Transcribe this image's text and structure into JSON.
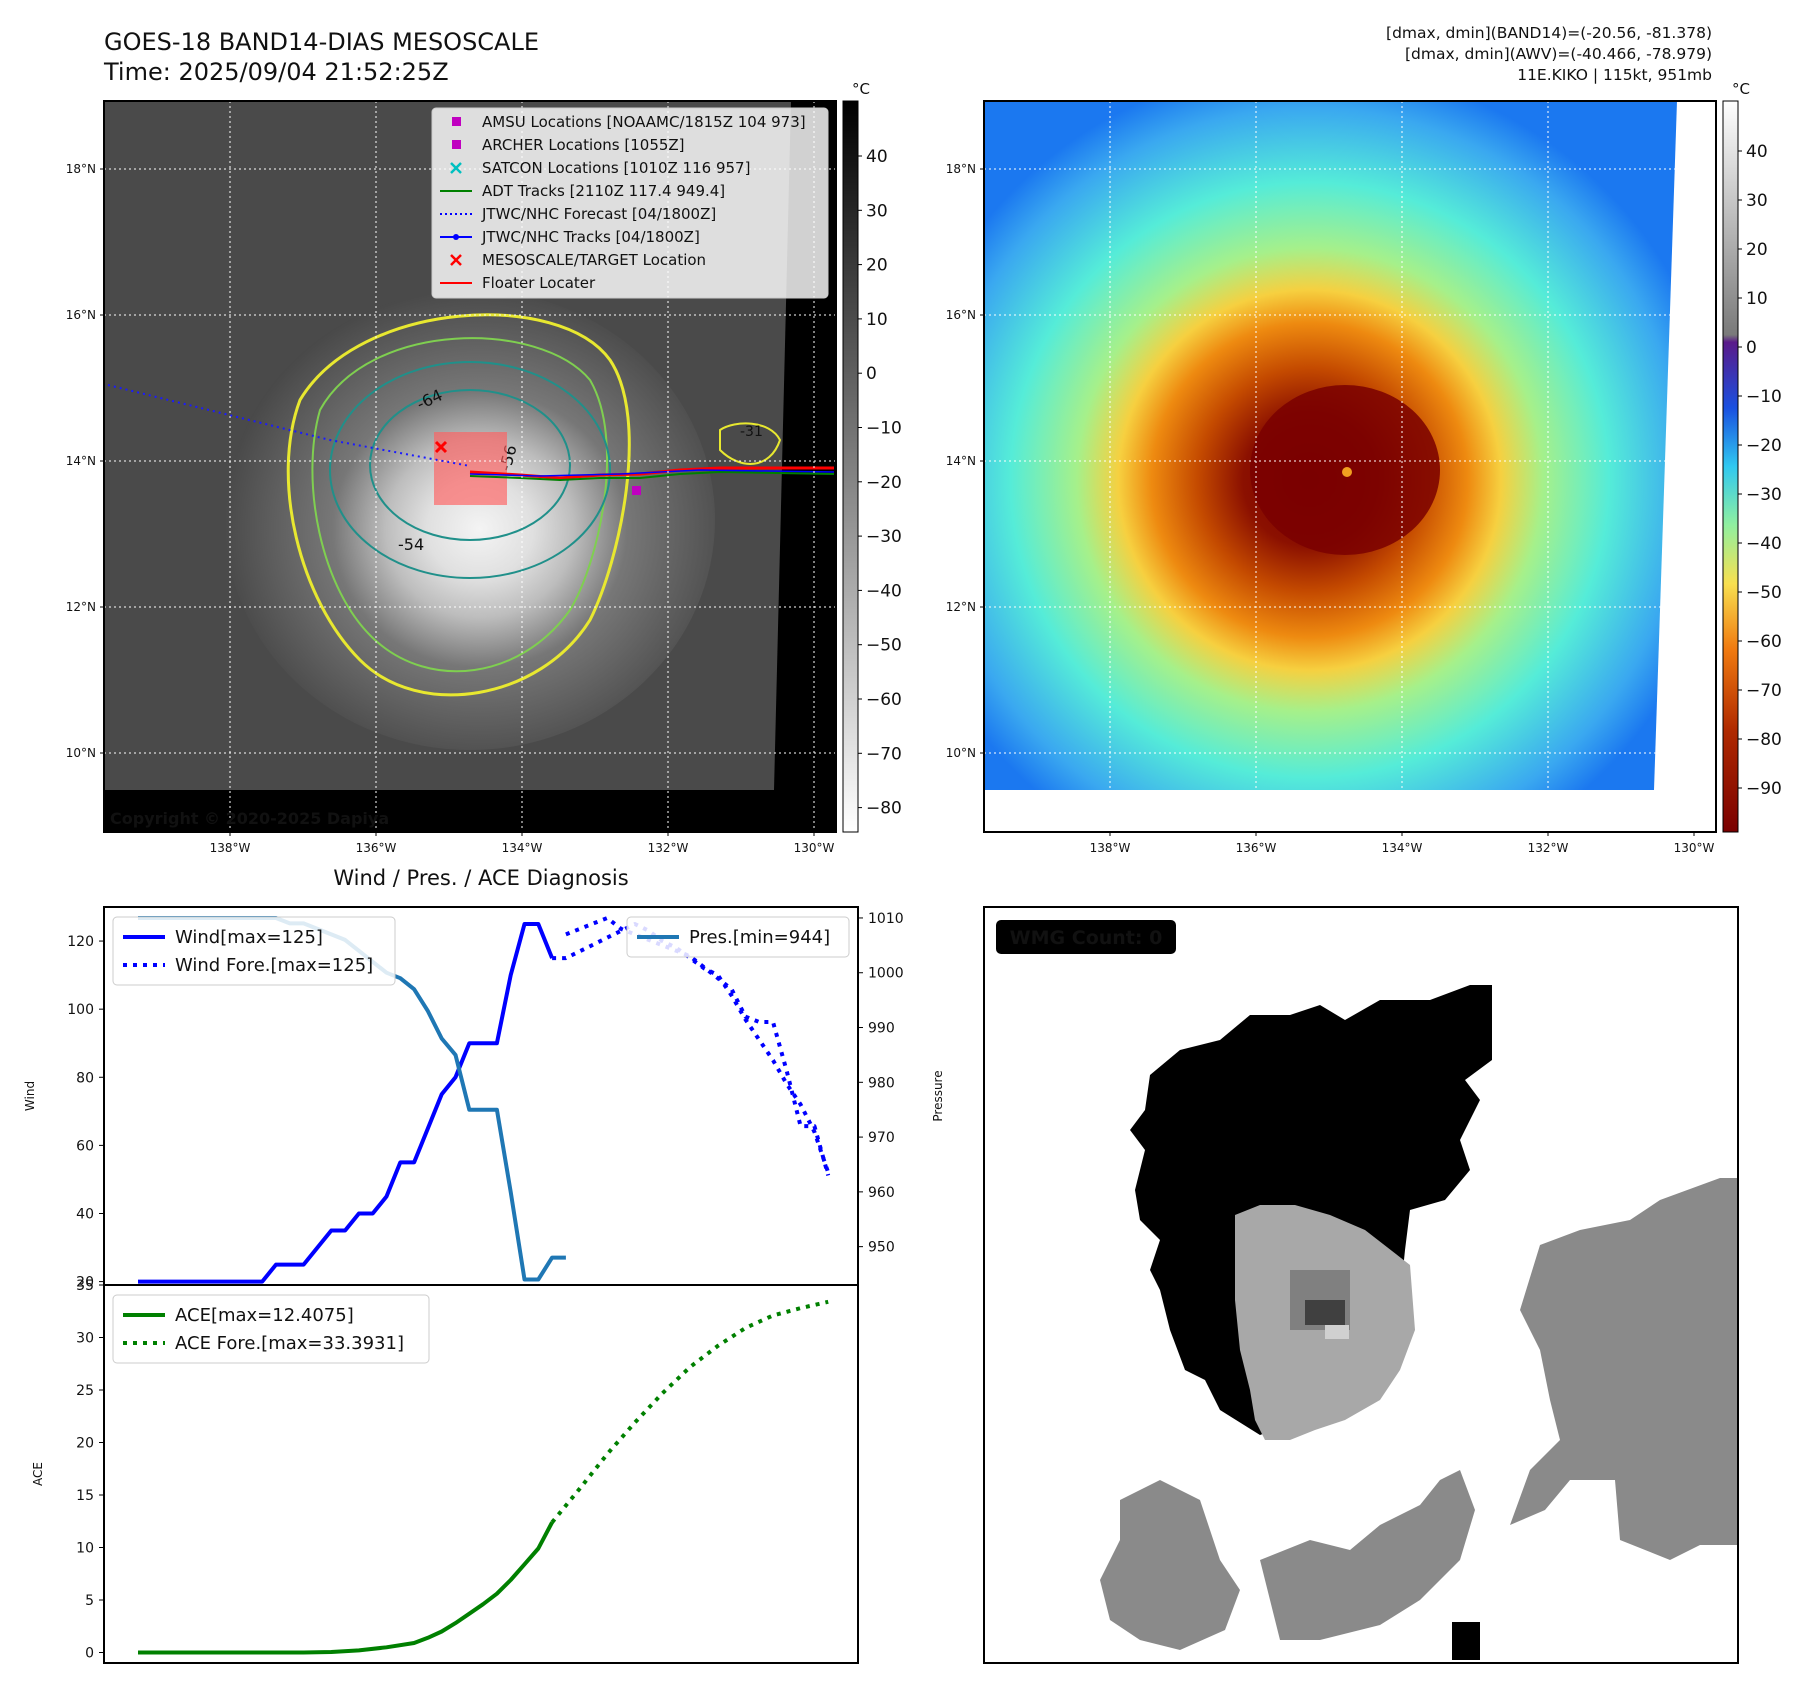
{
  "header": {
    "title_line1": "GOES-18 BAND14-DIAS MESOSCALE",
    "title_line2": "Time: 2025/09/04 21:52:25Z",
    "info_line1": "[dmax, dmin](BAND14)=(-20.56, -81.378)",
    "info_line2": "[dmax, dmin](AWV)=(-40.466, -78.979)",
    "info_line3": "11E.KIKO | 115kt, 951mb"
  },
  "map": {
    "lat_labels": [
      "18°N",
      "16°N",
      "14°N",
      "12°N",
      "10°N"
    ],
    "lat_values": [
      18,
      16,
      14,
      12,
      10
    ],
    "lon_labels": [
      "138°W",
      "136°W",
      "134°W",
      "132°W",
      "130°W"
    ],
    "lon_values": [
      -138,
      -136,
      -134,
      -132,
      -130
    ],
    "copyright": "Copyright © 2020-2025 Dapiya",
    "contour_labels": [
      "-64",
      "-56",
      "-54",
      "-31"
    ],
    "legend": [
      {
        "label": "AMSU Locations [NOAAMC/1815Z 104 973]",
        "kind": "square",
        "color": "#c000c0"
      },
      {
        "label": "ARCHER Locations [1055Z]",
        "kind": "square",
        "color": "#c000c0"
      },
      {
        "label": "SATCON Locations [1010Z 116 957]",
        "kind": "x",
        "color": "#00c0c0"
      },
      {
        "label": "ADT Tracks [2110Z 117.4 949.4]",
        "kind": "line",
        "color": "#008000"
      },
      {
        "label": "JTWC/NHC Forecast [04/1800Z]",
        "kind": "dotted",
        "color": "#0000ff"
      },
      {
        "label": "JTWC/NHC Tracks [04/1800Z]",
        "kind": "line-dot",
        "color": "#0000ff"
      },
      {
        "label": "MESOSCALE/TARGET Location",
        "kind": "x",
        "color": "#ff0000"
      },
      {
        "label": "Floater Locater",
        "kind": "line",
        "color": "#ff0000"
      }
    ]
  },
  "colorbar_left": {
    "unit": "°C",
    "ticks": [
      "40",
      "30",
      "20",
      "10",
      "0",
      "−10",
      "−20",
      "−30",
      "−40",
      "−50",
      "−60",
      "−70",
      "−80"
    ]
  },
  "colorbar_right": {
    "unit": "°C",
    "ticks": [
      "40",
      "30",
      "20",
      "10",
      "0",
      "−10",
      "−20",
      "−30",
      "−40",
      "−50",
      "−60",
      "−70",
      "−80",
      "−90"
    ]
  },
  "chart_data": [
    {
      "type": "line",
      "title": "Wind / Pres. / ACE Diagnosis",
      "ylabel": "Wind",
      "y2label": "Pressure",
      "ylim": [
        19,
        130
      ],
      "y2lim": [
        943,
        1012
      ],
      "yticks": [
        20,
        40,
        60,
        80,
        100,
        120
      ],
      "y2ticks": [
        950,
        960,
        970,
        980,
        990,
        1000,
        1010
      ],
      "x_range": [
        0,
        51
      ],
      "series": [
        {
          "name": "Wind[max=125]",
          "style": "solid",
          "color": "#0000ff",
          "x": [
            0,
            1,
            2,
            3,
            4,
            5,
            6,
            7,
            8,
            9,
            10,
            11,
            12,
            13,
            14,
            15,
            16,
            17,
            18,
            19,
            20,
            21,
            22,
            23,
            24,
            25,
            26,
            27,
            28,
            29,
            30
          ],
          "values": [
            20,
            20,
            20,
            20,
            20,
            20,
            20,
            20,
            20,
            20,
            25,
            25,
            25,
            30,
            35,
            35,
            40,
            40,
            45,
            55,
            55,
            65,
            75,
            80,
            90,
            90,
            90,
            110,
            125,
            125,
            115
          ]
        },
        {
          "name": "Wind Fore.[max=125]",
          "style": "dotted",
          "color": "#0000ff",
          "x": [
            30,
            31,
            32,
            33,
            34,
            35,
            36,
            37,
            38,
            39,
            40,
            41,
            42,
            43,
            44,
            45,
            46,
            47,
            48,
            49,
            50
          ],
          "values": [
            115,
            115,
            117,
            119,
            121,
            123,
            125,
            123,
            120,
            118,
            115,
            112,
            110,
            104,
            97,
            91,
            85,
            78,
            72,
            64,
            52
          ]
        },
        {
          "name": "Pres.[min=944]",
          "style": "solid",
          "color": "#1f77b4",
          "axis": "right",
          "x": [
            0,
            1,
            2,
            3,
            4,
            5,
            6,
            7,
            8,
            9,
            10,
            11,
            12,
            13,
            14,
            15,
            16,
            17,
            18,
            19,
            20,
            21,
            22,
            23,
            24,
            25,
            26,
            27,
            28,
            29,
            30,
            31
          ],
          "values": [
            1010,
            1010,
            1010,
            1010,
            1010,
            1010,
            1010,
            1010,
            1010,
            1010,
            1010,
            1009,
            1009,
            1008,
            1007,
            1006,
            1004,
            1002,
            1000,
            999,
            997,
            993,
            988,
            985,
            975,
            975,
            975,
            960,
            944,
            944,
            948,
            948
          ]
        },
        {
          "name": "",
          "style": "dotted",
          "color": "#0000ff",
          "axis": "right",
          "x": [
            31,
            32,
            33,
            34,
            35,
            36,
            37,
            38,
            39,
            40,
            41,
            42,
            43,
            44,
            45,
            46,
            47,
            48,
            49,
            50
          ],
          "values": [
            1007,
            1008,
            1009,
            1010,
            1008,
            1007,
            1006,
            1005,
            1004,
            1003,
            1001,
            999,
            997,
            992,
            991,
            991,
            982,
            972,
            972,
            963
          ]
        }
      ],
      "legend_left_position": "upper-left",
      "legend_right_position": "upper-right"
    },
    {
      "type": "line",
      "ylabel": "ACE",
      "ylim": [
        -1,
        35
      ],
      "yticks": [
        0,
        5,
        10,
        15,
        20,
        25,
        30,
        35
      ],
      "x_range": [
        0,
        51
      ],
      "series": [
        {
          "name": "ACE[max=12.4075]",
          "style": "solid",
          "color": "#008000",
          "x": [
            0,
            2,
            4,
            6,
            8,
            10,
            12,
            14,
            16,
            18,
            20,
            21,
            22,
            23,
            24,
            25,
            26,
            27,
            28,
            29,
            30
          ],
          "values": [
            0,
            0,
            0,
            0,
            0,
            0,
            0,
            0.05,
            0.2,
            0.5,
            0.9,
            1.4,
            2.0,
            2.8,
            3.7,
            4.6,
            5.6,
            6.9,
            8.4,
            9.9,
            12.4
          ]
        },
        {
          "name": "ACE Fore.[max=33.3931]",
          "style": "dotted",
          "color": "#008000",
          "x": [
            30,
            32,
            34,
            36,
            38,
            40,
            42,
            44,
            46,
            48,
            50
          ],
          "values": [
            12.4,
            15.6,
            18.9,
            21.9,
            24.7,
            27.2,
            29.2,
            30.9,
            32.1,
            32.8,
            33.4
          ]
        }
      ],
      "legend_position": "upper-left"
    }
  ],
  "wmg": {
    "label": "WMG Count: 0"
  }
}
